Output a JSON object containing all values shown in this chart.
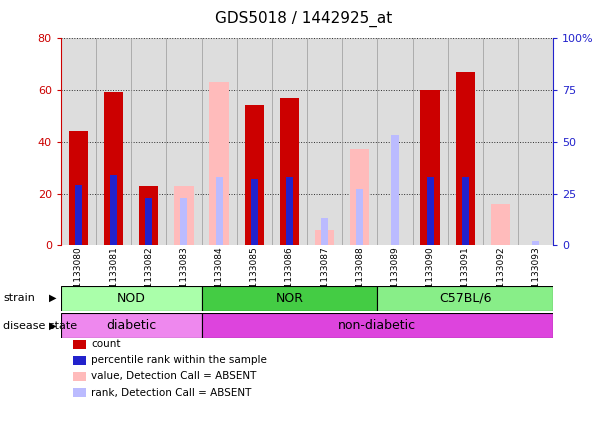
{
  "title": "GDS5018 / 1442925_at",
  "samples": [
    "GSM1133080",
    "GSM1133081",
    "GSM1133082",
    "GSM1133083",
    "GSM1133084",
    "GSM1133085",
    "GSM1133086",
    "GSM1133087",
    "GSM1133088",
    "GSM1133089",
    "GSM1133090",
    "GSM1133091",
    "GSM1133092",
    "GSM1133093"
  ],
  "count_values": [
    44,
    59,
    23,
    null,
    null,
    54,
    57,
    null,
    null,
    null,
    60,
    67,
    null,
    null
  ],
  "percentile_values": [
    29,
    34,
    23,
    null,
    null,
    32,
    33,
    null,
    null,
    null,
    33,
    33,
    null,
    null
  ],
  "absent_value_values": [
    null,
    null,
    null,
    23,
    63,
    null,
    null,
    6,
    37,
    null,
    null,
    null,
    16,
    null
  ],
  "absent_rank_values": [
    null,
    null,
    null,
    23,
    33,
    null,
    null,
    13,
    27,
    53,
    null,
    null,
    null,
    2
  ],
  "count_color": "#cc0000",
  "percentile_color": "#2222cc",
  "absent_value_color": "#ffbbbb",
  "absent_rank_color": "#bbbbff",
  "ylim_left": [
    0,
    80
  ],
  "ylim_right": [
    0,
    100
  ],
  "yticks_left": [
    0,
    20,
    40,
    60,
    80
  ],
  "yticks_right": [
    0,
    25,
    50,
    75,
    100
  ],
  "strain_groups": [
    {
      "label": "NOD",
      "start": 0,
      "end": 3,
      "color": "#aaffaa"
    },
    {
      "label": "NOR",
      "start": 4,
      "end": 8,
      "color": "#44cc44"
    },
    {
      "label": "C57BL/6",
      "start": 9,
      "end": 13,
      "color": "#88ee88"
    }
  ],
  "disease_groups": [
    {
      "label": "diabetic",
      "start": 0,
      "end": 3,
      "color": "#ee88ee"
    },
    {
      "label": "non-diabetic",
      "start": 4,
      "end": 13,
      "color": "#dd44dd"
    }
  ],
  "background_color": "#ffffff",
  "plot_bg_color": "#dddddd",
  "left_axis_color": "#cc0000",
  "right_axis_color": "#2222cc"
}
